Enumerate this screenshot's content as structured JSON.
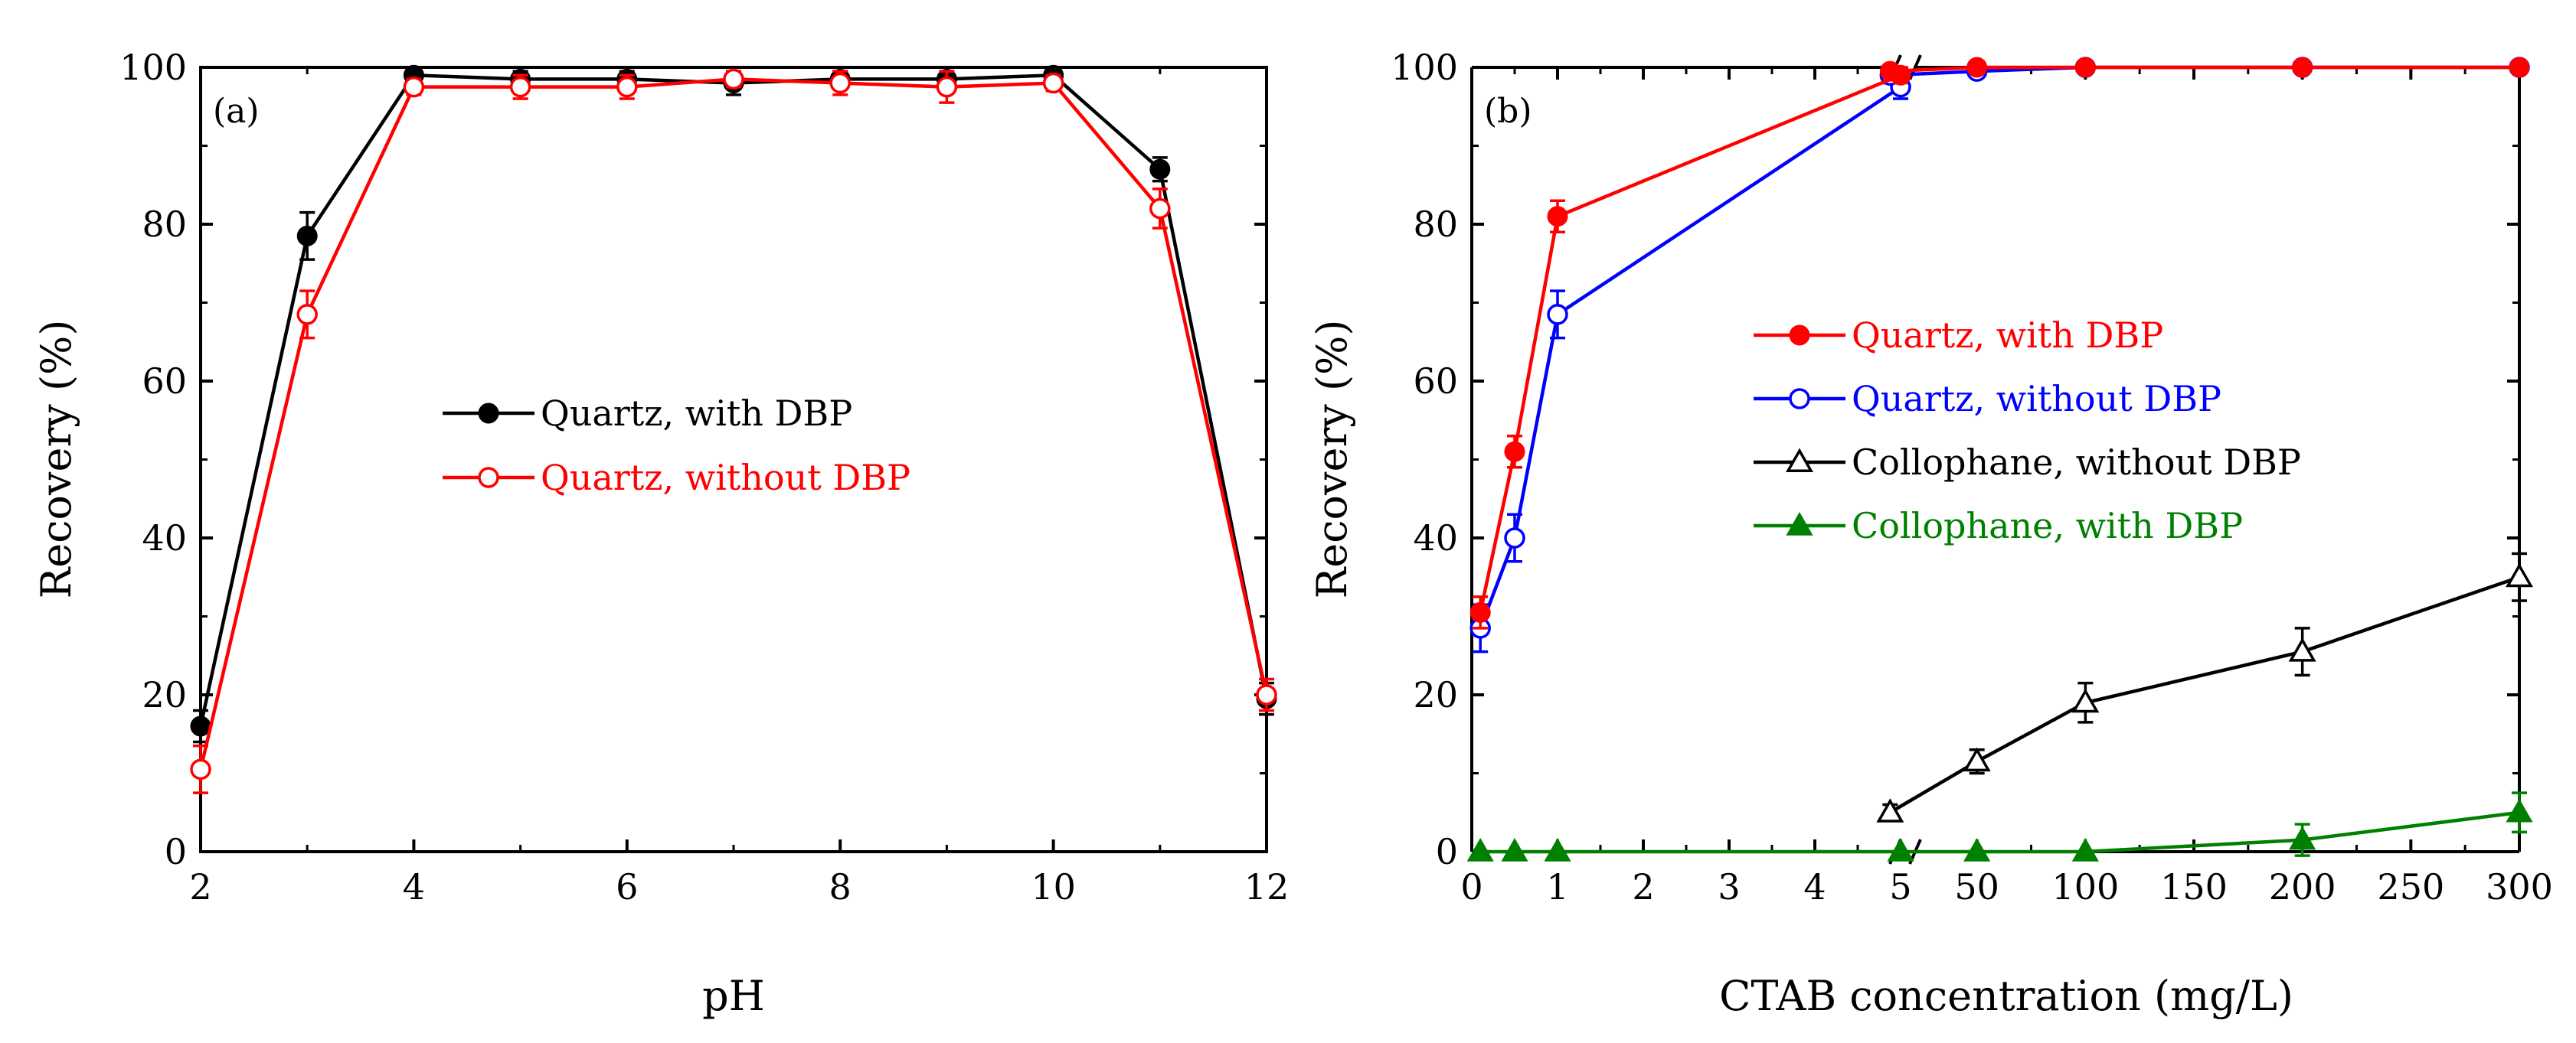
{
  "chart_data": [
    {
      "panel": "(a)",
      "type": "line",
      "xlabel": "pH",
      "ylabel": "Recovery (%)",
      "xlim": [
        2,
        12
      ],
      "ylim": [
        0,
        100
      ],
      "xticks": [
        "2",
        "4",
        "6",
        "8",
        "10",
        "12"
      ],
      "yticks": [
        "0",
        "20",
        "40",
        "60",
        "80",
        "100"
      ],
      "legend_position": "center",
      "series": [
        {
          "name": "Quartz, with DBP",
          "color": "#000000",
          "marker": "filled-circle",
          "x": [
            2,
            3,
            4,
            5,
            6,
            7,
            8,
            9,
            10,
            11,
            12
          ],
          "values": [
            16,
            78.5,
            99,
            98.5,
            98.5,
            98,
            98.5,
            98.5,
            99,
            87,
            19.5
          ],
          "errors": [
            2,
            3,
            0.8,
            1,
            1,
            1.5,
            1,
            1,
            0.8,
            1.5,
            2
          ]
        },
        {
          "name": "Quartz, without DBP",
          "color": "#ff0000",
          "marker": "open-circle",
          "x": [
            2,
            3,
            4,
            5,
            6,
            7,
            8,
            9,
            10,
            11,
            12
          ],
          "values": [
            10.5,
            68.5,
            97.5,
            97.5,
            97.5,
            98.5,
            98,
            97.5,
            98,
            82,
            20
          ],
          "errors": [
            3,
            3,
            1,
            1.5,
            1.5,
            1,
            1.5,
            2,
            1,
            2.5,
            2
          ]
        }
      ]
    },
    {
      "panel": "(b)",
      "type": "line",
      "xlabel": "CTAB concentration (mg/L)",
      "ylabel": "Recovery (%)",
      "xlim_left_segment": [
        0,
        5
      ],
      "xlim_right_segment": [
        5,
        300
      ],
      "ylim": [
        0,
        100
      ],
      "xticks": [
        "0",
        "1",
        "2",
        "3",
        "4",
        "5",
        "50",
        "100",
        "150",
        "200",
        "250",
        "300"
      ],
      "yticks": [
        "0",
        "20",
        "40",
        "60",
        "80",
        "100"
      ],
      "axis_break": "between 5 and 50",
      "legend_position": "center-left",
      "series": [
        {
          "name": "Quartz, with DBP",
          "color": "#ff0000",
          "marker": "filled-circle",
          "x": [
            0.1,
            0.5,
            1,
            5,
            10,
            50,
            100,
            200,
            300
          ],
          "values": [
            30.5,
            51,
            81,
            99,
            99.5,
            100,
            100,
            100,
            100
          ],
          "errors": [
            2,
            2,
            2,
            1,
            0.5,
            0.3,
            0.3,
            0.3,
            0.3
          ]
        },
        {
          "name": "Quartz, without DBP",
          "color": "#0000ff",
          "marker": "open-circle",
          "x": [
            0.1,
            0.5,
            1,
            5,
            10,
            50,
            100,
            200,
            300
          ],
          "values": [
            28.5,
            40,
            68.5,
            97.5,
            99,
            99.5,
            100,
            100,
            100
          ],
          "errors": [
            3,
            3,
            3,
            1.5,
            1,
            0.5,
            0.3,
            0.3,
            0.3
          ]
        },
        {
          "name": "Collophane, without DBP",
          "color": "#000000",
          "marker": "open-triangle",
          "x": [
            10,
            50,
            100,
            200,
            300
          ],
          "values": [
            5,
            11.5,
            19,
            25.5,
            35
          ],
          "errors": [
            1,
            1.5,
            2.5,
            3,
            3
          ]
        },
        {
          "name": "Collophane, with DBP",
          "color": "#008000",
          "marker": "filled-triangle",
          "x": [
            0.1,
            0.5,
            1,
            5,
            50,
            100,
            200,
            300
          ],
          "values": [
            0,
            0,
            0,
            0,
            0,
            0,
            1.5,
            5
          ],
          "errors": [
            0,
            0,
            0,
            0,
            0,
            0,
            2,
            2.5
          ]
        }
      ]
    }
  ]
}
